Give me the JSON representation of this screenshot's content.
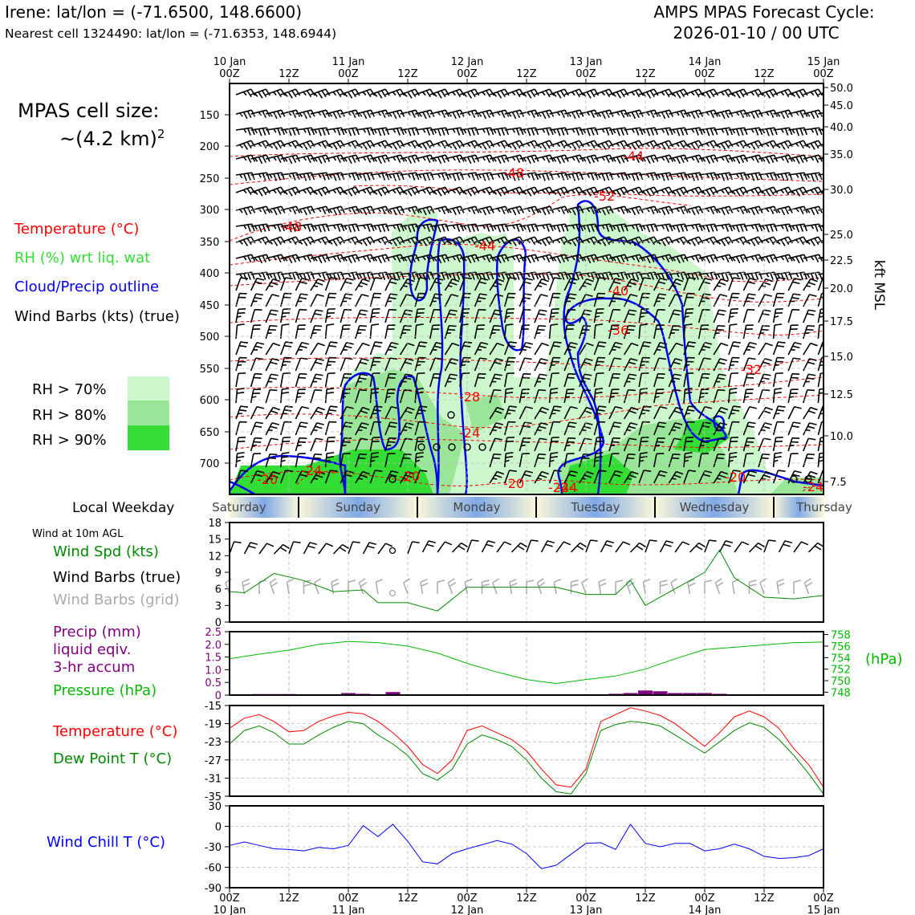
{
  "header": {
    "station_line": "Irene: lat/lon = (-71.6500, 148.6600)",
    "cell_line": "Nearest cell 1324490: lat/lon = (-71.6353, 148.6944)",
    "forecast_title": "AMPS MPAS Forecast Cycle:",
    "forecast_cycle": "2026-01-10 / 00 UTC"
  },
  "left_legend": {
    "cell_size_label": "MPAS cell size:",
    "cell_size_value": "~(4.2 km)",
    "cell_size_exp": "2",
    "temperature": "Temperature (°C)",
    "rh": "RH (%) wrt liq. wat",
    "cloud": "Cloud/Precip outline",
    "wind": "Wind Barbs (kts) (true)",
    "rh70": "RH > 70%",
    "rh80": "RH > 80%",
    "rh90": "RH > 90%"
  },
  "colors": {
    "temperature": "#ff0000",
    "rh_label": "#33dd33",
    "cloud": "#0000ee",
    "rh70": "#ccf7cc",
    "rh80": "#99e699",
    "rh90": "#33dd33",
    "wind_speed": "#008800",
    "grid_barbs": "#aaaaaa",
    "precip": "#800080",
    "pressure": "#00bb00",
    "dewpoint": "#008800",
    "windchill": "#0000ff"
  },
  "time_axis": {
    "top_labels": [
      {
        "day": "10 Jan",
        "hour": "00Z"
      },
      {
        "day": "",
        "hour": "12Z"
      },
      {
        "day": "11 Jan",
        "hour": "00Z"
      },
      {
        "day": "",
        "hour": "12Z"
      },
      {
        "day": "12 Jan",
        "hour": "00Z"
      },
      {
        "day": "",
        "hour": "12Z"
      },
      {
        "day": "13 Jan",
        "hour": "00Z"
      },
      {
        "day": "",
        "hour": "12Z"
      },
      {
        "day": "14 Jan",
        "hour": "00Z"
      },
      {
        "day": "",
        "hour": "12Z"
      },
      {
        "day": "15 Jan",
        "hour": "00Z"
      }
    ]
  },
  "cross_section": {
    "pressure_ticks": [
      "150",
      "200",
      "250",
      "300",
      "350",
      "400",
      "450",
      "500",
      "550",
      "600",
      "650",
      "700"
    ],
    "altitude_ticks": [
      "50.0",
      "45.0",
      "40.0",
      "35.0",
      "30.0",
      "25.0",
      "22.5",
      "20.0",
      "17.5",
      "15.0",
      "12.5",
      "10.0",
      "7.5"
    ],
    "altitude_axis_label": "kft MSL",
    "temperature_labels": [
      "-44",
      "-48",
      "-52",
      "-48",
      "-44",
      "-40",
      "-36",
      "-32",
      "-28",
      "-24",
      "-20",
      "-20",
      "-24",
      "-20",
      "-20",
      "-24",
      "-24",
      "-20",
      "-24"
    ]
  },
  "weekday_bar": {
    "label": "Local Weekday",
    "days": [
      "Saturday",
      "Sunday",
      "Monday",
      "Tuesday",
      "Wednesday",
      "Thursday"
    ]
  },
  "panels": {
    "wind_note": "Wind at 10m AGL",
    "wind_spd_label": "Wind Spd (kts)",
    "wind_true_label": "Wind Barbs (true)",
    "wind_grid_label": "Wind Barbs (grid)",
    "precip_label_1": "Precip (mm)",
    "precip_label_2": "liquid eqiv.",
    "precip_label_3": "3-hr accum",
    "pressure_label": "Pressure (hPa)",
    "pressure_unit": "(hPa)",
    "temp_label": "Temperature (°C)",
    "dew_label": "Dew Point T (°C)",
    "windchill_label": "Wind Chill T (°C)"
  },
  "bottom_axis": {
    "hours": [
      "00Z",
      "12Z",
      "00Z",
      "12Z",
      "00Z",
      "12Z",
      "00Z",
      "12Z",
      "00Z",
      "12Z",
      "00Z"
    ],
    "days": [
      "10 Jan",
      "",
      "11 Jan",
      "",
      "12 Jan",
      "",
      "13 Jan",
      "",
      "14 Jan",
      "",
      "15 Jan"
    ]
  },
  "chart_data": [
    {
      "type": "line",
      "title": "Wind at 10m AGL",
      "ylim": [
        0,
        18
      ],
      "yticks": [
        "0",
        "3",
        "6",
        "9",
        "12",
        "15",
        "18"
      ],
      "x_hours": [
        0,
        3,
        9,
        15,
        21,
        27,
        30,
        36,
        42,
        48,
        54,
        60,
        66,
        72,
        78,
        81,
        84,
        90,
        96,
        99,
        102,
        108,
        114,
        120
      ],
      "series": [
        {
          "name": "Wind Spd (kts)",
          "values": [
            5.5,
            5.3,
            8.8,
            7.5,
            5.5,
            5.8,
            3.5,
            3.5,
            2.0,
            6.3,
            6.3,
            6.3,
            6.3,
            5.0,
            5.0,
            7.5,
            3.0,
            6.0,
            9.0,
            13.0,
            8.0,
            4.5,
            4.2,
            4.8
          ]
        }
      ]
    },
    {
      "type": "bar",
      "title": "Precip (mm) liquid eqiv. 3-hr accum",
      "ylim": [
        0,
        2.5
      ],
      "yticks": [
        "0",
        "0.5",
        "1.0",
        "1.5",
        "2.0",
        "2.5"
      ],
      "bars": [
        {
          "x_hour": 6,
          "value": 0.04
        },
        {
          "x_hour": 9,
          "value": 0.04
        },
        {
          "x_hour": 12,
          "value": 0.04
        },
        {
          "x_hour": 24,
          "value": 0.08
        },
        {
          "x_hour": 27,
          "value": 0.05
        },
        {
          "x_hour": 33,
          "value": 0.12
        },
        {
          "x_hour": 78,
          "value": 0.05
        },
        {
          "x_hour": 81,
          "value": 0.08
        },
        {
          "x_hour": 84,
          "value": 0.18
        },
        {
          "x_hour": 87,
          "value": 0.15
        },
        {
          "x_hour": 90,
          "value": 0.08
        },
        {
          "x_hour": 93,
          "value": 0.08
        },
        {
          "x_hour": 96,
          "value": 0.08
        },
        {
          "x_hour": 99,
          "value": 0.05
        }
      ]
    },
    {
      "type": "line",
      "title": "Pressure (hPa)",
      "ylim": [
        747.5,
        758.5
      ],
      "yticks": [
        "748",
        "750",
        "752",
        "754",
        "756",
        "758"
      ],
      "x_hours": [
        0,
        6,
        12,
        18,
        24,
        30,
        36,
        42,
        48,
        54,
        60,
        66,
        72,
        78,
        84,
        90,
        96,
        102,
        108,
        114,
        120
      ],
      "series": [
        {
          "name": "Pressure (hPa)",
          "values": [
            753.8,
            754.6,
            755.3,
            756.3,
            756.8,
            756.6,
            756.0,
            754.8,
            753.0,
            751.5,
            750.2,
            749.5,
            750.2,
            750.8,
            752.0,
            753.8,
            755.4,
            755.8,
            756.2,
            756.6,
            756.7
          ]
        }
      ]
    },
    {
      "type": "line",
      "title": "Temperature (°C) / Dew Point T (°C)",
      "ylim": [
        -35,
        -15
      ],
      "yticks": [
        "-15",
        "-19",
        "-23",
        "-27",
        "-31",
        "-35"
      ],
      "x_hours": [
        0,
        3,
        6,
        9,
        12,
        15,
        18,
        21,
        24,
        27,
        30,
        33,
        36,
        39,
        42,
        45,
        48,
        51,
        54,
        57,
        60,
        63,
        66,
        69,
        72,
        75,
        78,
        81,
        84,
        87,
        90,
        93,
        96,
        99,
        102,
        105,
        108,
        111,
        114,
        117,
        120
      ],
      "series": [
        {
          "name": "Temperature (°C)",
          "values": [
            -20,
            -17.8,
            -17,
            -18.5,
            -20.8,
            -20.5,
            -18.5,
            -17.3,
            -16.5,
            -16.8,
            -18.5,
            -21,
            -24,
            -28,
            -30,
            -27,
            -20.5,
            -19.5,
            -21,
            -22.5,
            -25,
            -29,
            -32.5,
            -33,
            -29,
            -18.5,
            -17,
            -15.5,
            -16.2,
            -17.2,
            -19,
            -21.5,
            -24,
            -21,
            -17.5,
            -16.2,
            -17.5,
            -20,
            -24.5,
            -28,
            -33
          ]
        },
        {
          "name": "Dew Point T (°C)",
          "values": [
            -23.5,
            -20.5,
            -19.5,
            -21,
            -23.5,
            -23.5,
            -21.5,
            -19.8,
            -18.5,
            -19,
            -21.5,
            -23.5,
            -26,
            -30,
            -31.5,
            -29,
            -23.5,
            -21.5,
            -22.5,
            -24,
            -27,
            -31,
            -34,
            -34.5,
            -30,
            -20.5,
            -19.2,
            -18.5,
            -18.8,
            -19.5,
            -21.5,
            -23.5,
            -25.5,
            -23,
            -20.5,
            -18.8,
            -19.8,
            -22.5,
            -26,
            -30,
            -34.5
          ]
        }
      ]
    },
    {
      "type": "line",
      "title": "Wind Chill T (°C)",
      "ylim": [
        -90,
        30
      ],
      "yticks": [
        "30",
        "0",
        "-30",
        "-60",
        "-90"
      ],
      "x_hours": [
        0,
        3,
        6,
        9,
        12,
        15,
        18,
        21,
        24,
        27,
        30,
        33,
        36,
        39,
        42,
        45,
        48,
        51,
        54,
        57,
        60,
        63,
        66,
        69,
        72,
        75,
        78,
        81,
        84,
        87,
        90,
        93,
        96,
        99,
        102,
        105,
        108,
        111,
        114,
        117,
        120
      ],
      "series": [
        {
          "name": "Wind Chill T (°C)",
          "values": [
            -28,
            -23,
            -28,
            -33,
            -34,
            -36,
            -31,
            -33,
            -28,
            1,
            -15,
            3,
            -22,
            -52,
            -55,
            -40,
            -33,
            -27,
            -21,
            -26,
            -40,
            -62,
            -57,
            -41,
            -25,
            -24,
            -34,
            3,
            -25,
            -30,
            -25,
            -25,
            -36,
            -33,
            -26,
            -33,
            -44,
            -47,
            -46,
            -43,
            -33
          ]
        }
      ]
    }
  ]
}
